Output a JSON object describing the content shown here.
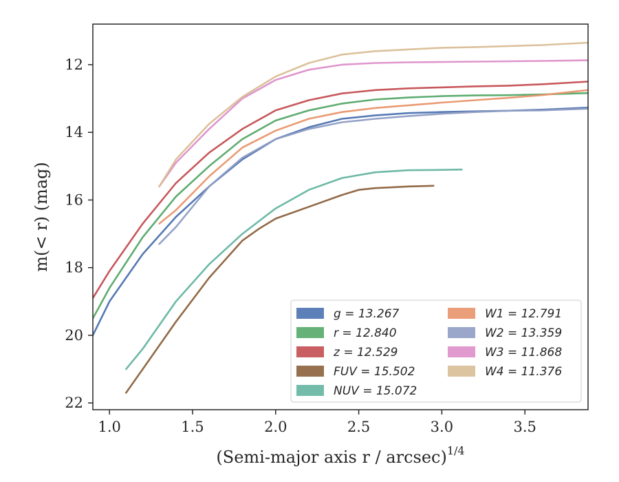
{
  "chart_data": {
    "type": "line",
    "title": "",
    "xlabel": "(Semi-major axis r / arcsec)",
    "xlabel_sup": "1/4",
    "ylabel": "m(< r) (mag)",
    "xlim": [
      0.9,
      3.88
    ],
    "ylim": [
      22.2,
      10.8
    ],
    "y_inverted": true,
    "x_ticks": [
      1.0,
      1.5,
      2.0,
      2.5,
      3.0,
      3.5
    ],
    "x_tick_labels": [
      "1.0",
      "1.5",
      "2.0",
      "2.5",
      "3.0",
      "3.5"
    ],
    "y_ticks": [
      12,
      14,
      16,
      18,
      20,
      22
    ],
    "y_tick_labels": [
      "12",
      "14",
      "16",
      "18",
      "20",
      "22"
    ],
    "grid": false,
    "legend_position": "lower-right",
    "series": [
      {
        "name": "g = 13.267",
        "color": "#4c72b0",
        "x": [
          0.9,
          1.0,
          1.2,
          1.4,
          1.6,
          1.8,
          2.0,
          2.2,
          2.4,
          2.6,
          2.8,
          3.0,
          3.2,
          3.4,
          3.6,
          3.88
        ],
        "y": [
          20.0,
          19.0,
          17.6,
          16.5,
          15.6,
          14.8,
          14.2,
          13.85,
          13.6,
          13.5,
          13.43,
          13.4,
          13.38,
          13.36,
          13.33,
          13.27
        ]
      },
      {
        "name": "r = 12.840",
        "color": "#55a868",
        "x": [
          0.9,
          1.0,
          1.2,
          1.4,
          1.6,
          1.8,
          2.0,
          2.2,
          2.4,
          2.6,
          2.8,
          3.0,
          3.2,
          3.4,
          3.6,
          3.88
        ],
        "y": [
          19.5,
          18.6,
          17.1,
          15.9,
          15.0,
          14.2,
          13.65,
          13.35,
          13.15,
          13.03,
          12.97,
          12.93,
          12.91,
          12.9,
          12.88,
          12.84
        ]
      },
      {
        "name": "z = 12.529",
        "color": "#c44e52",
        "x": [
          0.9,
          1.0,
          1.2,
          1.4,
          1.6,
          1.8,
          2.0,
          2.2,
          2.4,
          2.6,
          2.8,
          3.0,
          3.2,
          3.4,
          3.6,
          3.88
        ],
        "y": [
          18.9,
          18.1,
          16.7,
          15.5,
          14.6,
          13.9,
          13.35,
          13.05,
          12.85,
          12.75,
          12.7,
          12.67,
          12.64,
          12.62,
          12.58,
          12.5
        ]
      },
      {
        "name": "FUV = 15.502",
        "color": "#8c613c",
        "x": [
          1.1,
          1.2,
          1.4,
          1.6,
          1.8,
          1.9,
          2.0,
          2.2,
          2.4,
          2.5,
          2.6,
          2.8,
          2.95
        ],
        "y": [
          21.7,
          21.0,
          19.6,
          18.3,
          17.2,
          16.85,
          16.55,
          16.2,
          15.85,
          15.7,
          15.65,
          15.6,
          15.58
        ]
      },
      {
        "name": "NUV = 15.072",
        "color": "#64b5a0",
        "x": [
          1.1,
          1.2,
          1.4,
          1.6,
          1.8,
          2.0,
          2.2,
          2.4,
          2.6,
          2.8,
          3.0,
          3.12
        ],
        "y": [
          21.0,
          20.4,
          19.0,
          17.9,
          17.0,
          16.25,
          15.7,
          15.35,
          15.18,
          15.12,
          15.11,
          15.1
        ]
      },
      {
        "name": "W1 = 12.791",
        "color": "#e8956b",
        "x": [
          1.3,
          1.4,
          1.6,
          1.8,
          2.0,
          2.2,
          2.4,
          2.6,
          2.8,
          3.0,
          3.2,
          3.4,
          3.6,
          3.88
        ],
        "y": [
          16.7,
          16.3,
          15.3,
          14.45,
          13.95,
          13.6,
          13.4,
          13.28,
          13.2,
          13.12,
          13.05,
          12.98,
          12.9,
          12.75
        ]
      },
      {
        "name": "W2 = 13.359",
        "color": "#8f9dc4",
        "x": [
          1.3,
          1.4,
          1.6,
          1.8,
          2.0,
          2.2,
          2.4,
          2.6,
          2.8,
          3.0,
          3.2,
          3.4,
          3.6,
          3.88
        ],
        "y": [
          17.3,
          16.8,
          15.6,
          14.75,
          14.2,
          13.9,
          13.7,
          13.6,
          13.52,
          13.45,
          13.4,
          13.36,
          13.35,
          13.3
        ]
      },
      {
        "name": "W3 = 11.868",
        "color": "#dd8fc9",
        "x": [
          1.3,
          1.4,
          1.6,
          1.8,
          2.0,
          2.2,
          2.4,
          2.6,
          2.8,
          3.0,
          3.2,
          3.4,
          3.6,
          3.88
        ],
        "y": [
          15.6,
          14.9,
          13.9,
          13.0,
          12.45,
          12.15,
          12.0,
          11.95,
          11.93,
          11.92,
          11.91,
          11.9,
          11.89,
          11.87
        ]
      },
      {
        "name": "W4 = 11.376",
        "color": "#d9be96",
        "x": [
          1.3,
          1.4,
          1.6,
          1.8,
          2.0,
          2.2,
          2.4,
          2.6,
          2.8,
          3.0,
          3.2,
          3.4,
          3.6,
          3.88
        ],
        "y": [
          15.6,
          14.8,
          13.75,
          12.95,
          12.35,
          11.95,
          11.7,
          11.6,
          11.55,
          11.5,
          11.48,
          11.45,
          11.42,
          11.35
        ]
      }
    ]
  }
}
